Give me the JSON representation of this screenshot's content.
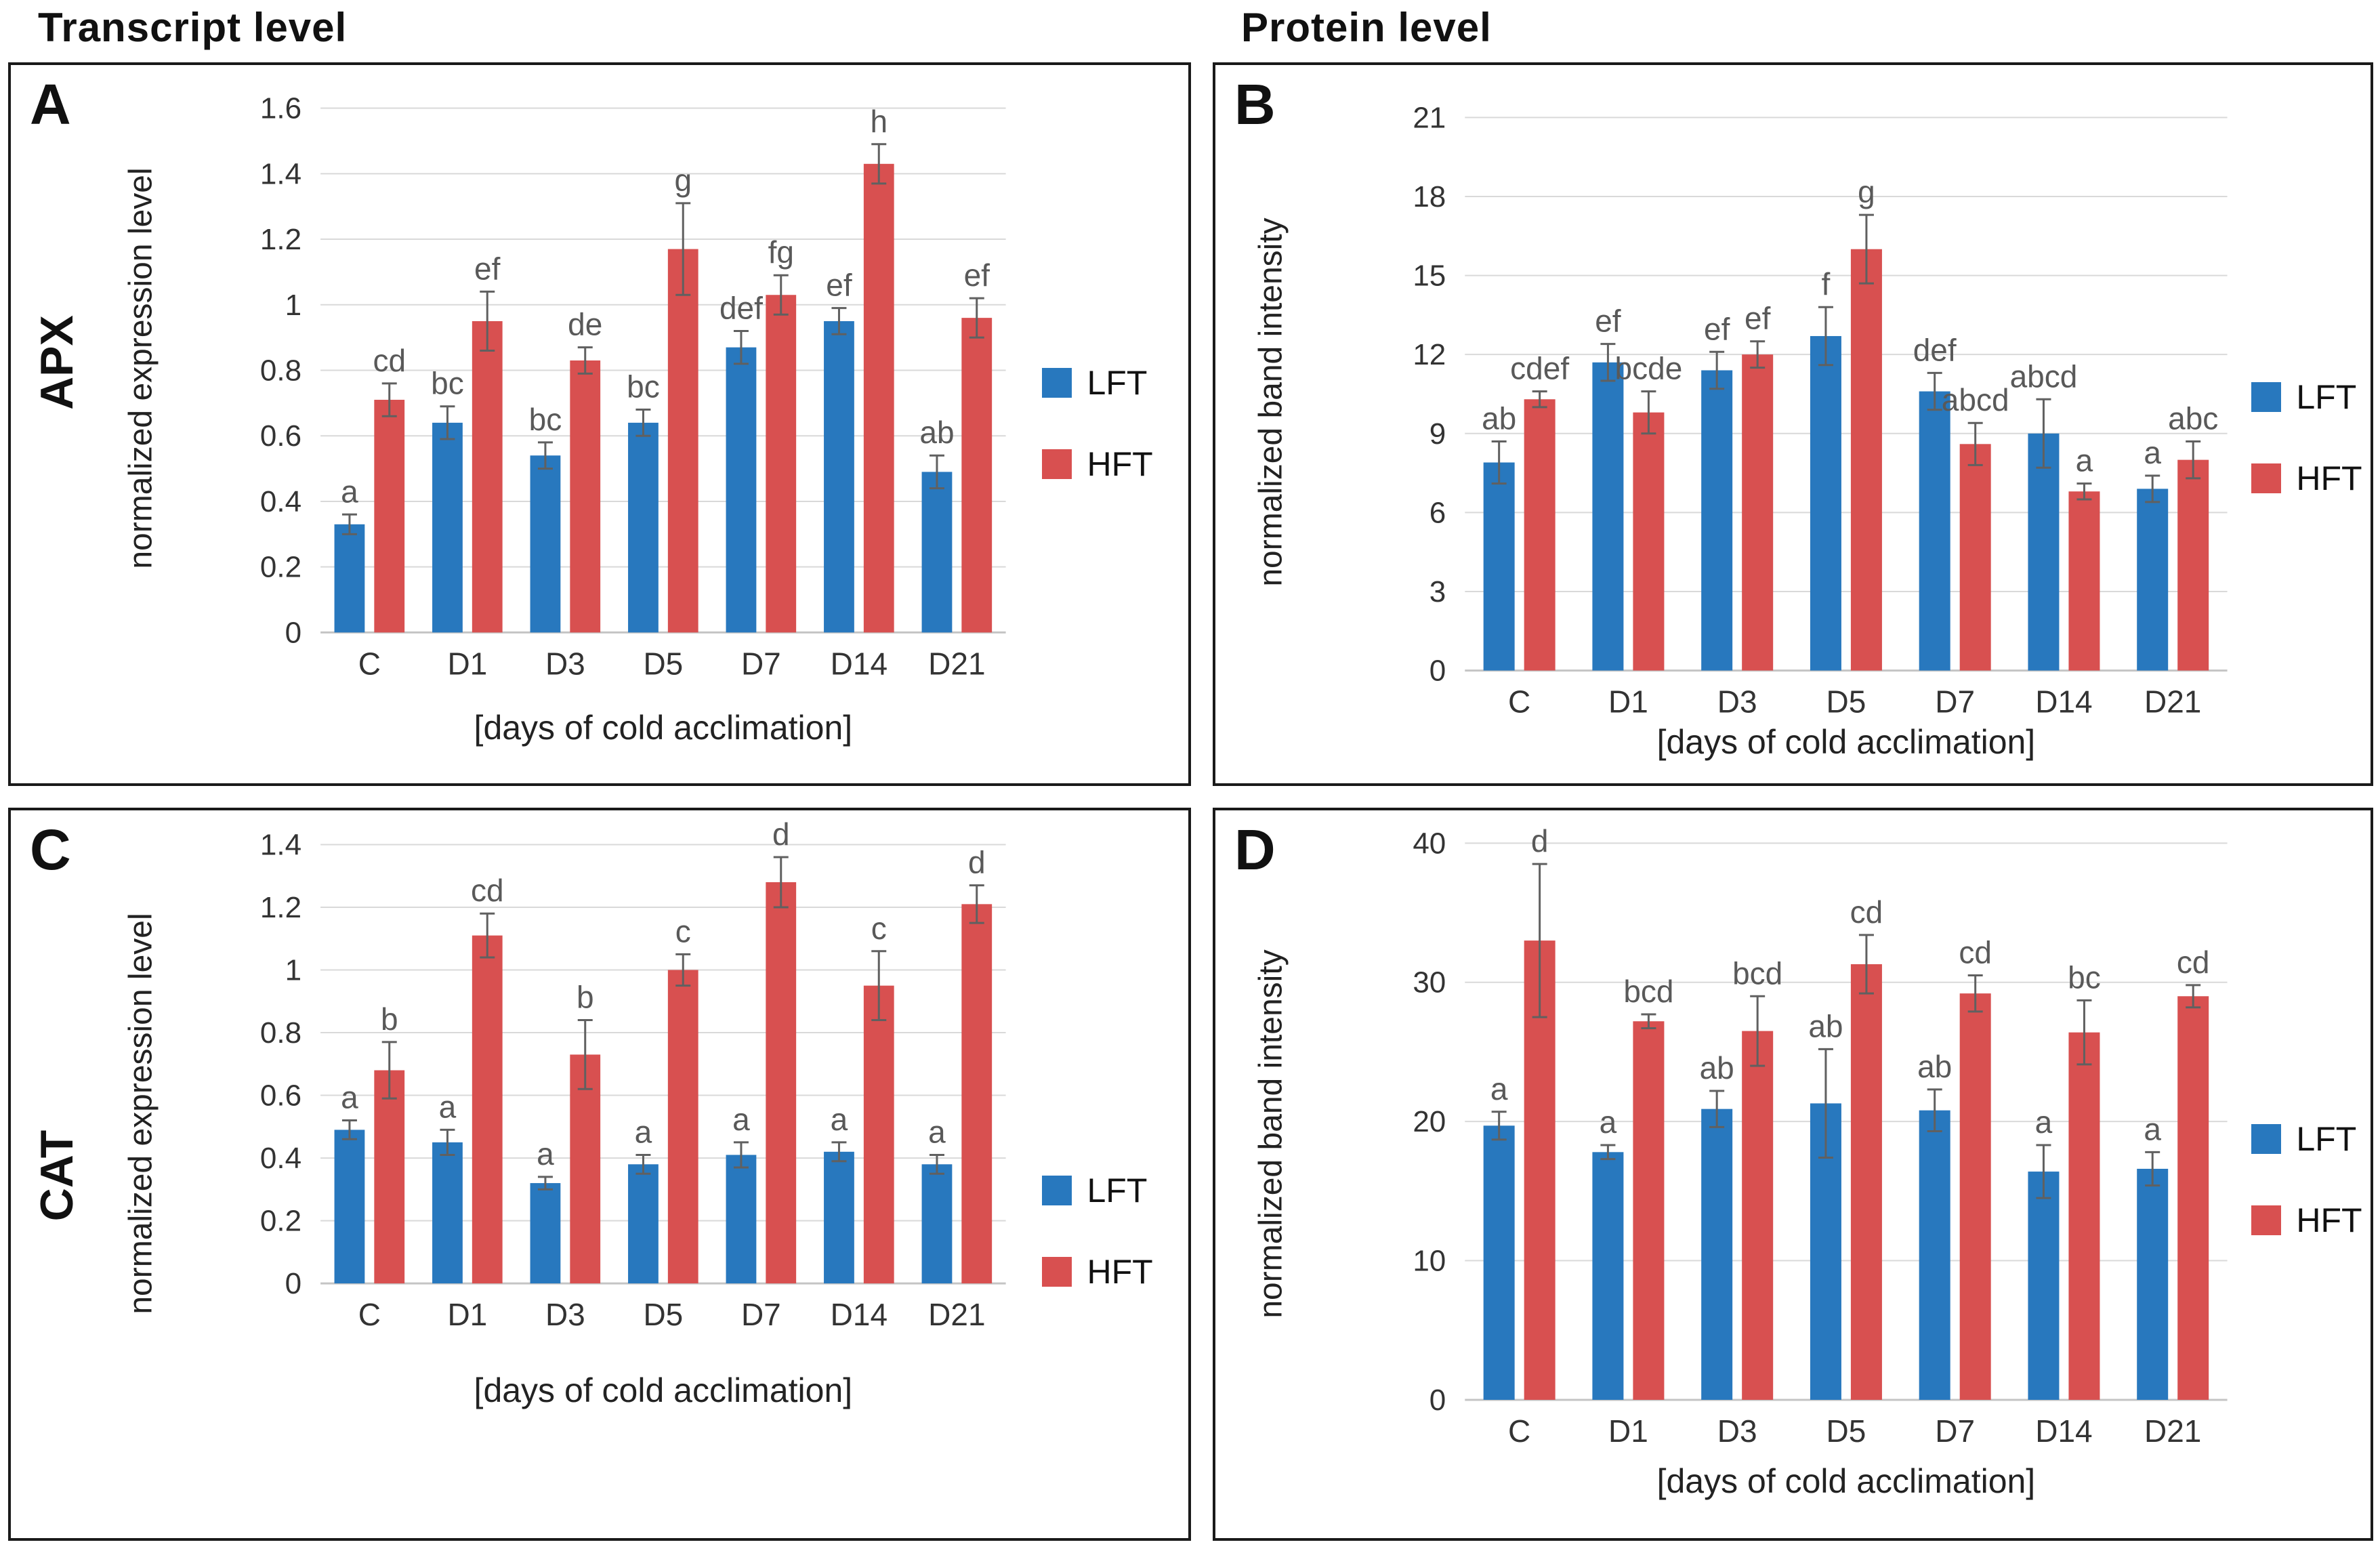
{
  "figure": {
    "column_titles": [
      "Transcript level",
      "Protein level"
    ],
    "legend": {
      "lft_label": "LFT",
      "hft_label": "HFT"
    },
    "colors": {
      "lft": "#2878BE",
      "hft": "#D85050",
      "error_bar": "#606060",
      "gridline": "#D9D9D9",
      "letter": "#595959",
      "axis_text": "#333333"
    }
  },
  "chart_data": [
    {
      "panel": "A",
      "type": "bar",
      "gene": "APX",
      "column_title": "Transcript level",
      "ylabel": "normalized expression level",
      "xlabel": "[days of cold acclimation]",
      "ylim": [
        0,
        1.6
      ],
      "yticks": [
        "0",
        "0.2",
        "0.4",
        "0.6",
        "0.8",
        "1",
        "1.2",
        "1.4",
        "1.6"
      ],
      "categories": [
        "C",
        "D1",
        "D3",
        "D5",
        "D7",
        "D14",
        "D21"
      ],
      "grid": true,
      "legend_position": "right",
      "series": [
        {
          "name": "LFT",
          "color": "#2878BE",
          "values": [
            0.33,
            0.64,
            0.54,
            0.64,
            0.87,
            0.95,
            0.49
          ],
          "errors": [
            0.03,
            0.05,
            0.04,
            0.04,
            0.05,
            0.04,
            0.05
          ],
          "letters": [
            "a",
            "bc",
            "bc",
            "bc",
            "def",
            "ef",
            "ab"
          ]
        },
        {
          "name": "HFT",
          "color": "#D85050",
          "values": [
            0.71,
            0.95,
            0.83,
            1.17,
            1.03,
            1.43,
            0.96
          ],
          "errors": [
            0.05,
            0.09,
            0.04,
            0.14,
            0.06,
            0.06,
            0.06
          ],
          "letters": [
            "cd",
            "ef",
            "de",
            "g",
            "fg",
            "h",
            "ef"
          ]
        }
      ]
    },
    {
      "panel": "B",
      "type": "bar",
      "gene": "",
      "column_title": "Protein level",
      "ylabel": "normalized band intensity",
      "xlabel": "[days of cold acclimation]",
      "ylim": [
        0,
        21
      ],
      "yticks": [
        "0",
        "3",
        "6",
        "9",
        "12",
        "15",
        "18",
        "21"
      ],
      "categories": [
        "C",
        "D1",
        "D3",
        "D5",
        "D7",
        "D14",
        "D21"
      ],
      "grid": true,
      "legend_position": "right",
      "series": [
        {
          "name": "LFT",
          "color": "#2878BE",
          "values": [
            7.9,
            11.7,
            11.4,
            12.7,
            10.6,
            9.0,
            6.9
          ],
          "errors": [
            0.8,
            0.7,
            0.7,
            1.1,
            0.7,
            1.3,
            0.5
          ],
          "letters": [
            "ab",
            "ef",
            "ef",
            "f",
            "def",
            "abcd",
            "a"
          ]
        },
        {
          "name": "HFT",
          "color": "#D85050",
          "values": [
            10.3,
            9.8,
            12.0,
            16.0,
            8.6,
            6.8,
            8.0
          ],
          "errors": [
            0.3,
            0.8,
            0.5,
            1.3,
            0.8,
            0.3,
            0.7
          ],
          "letters": [
            "cdef",
            "bcde",
            "ef",
            "g",
            "abcd",
            "a",
            "abc"
          ]
        }
      ]
    },
    {
      "panel": "C",
      "type": "bar",
      "gene": "CAT",
      "column_title": "Transcript level",
      "ylabel": "normalized expression level",
      "xlabel": "[days of cold acclimation]",
      "ylim": [
        0,
        1.4
      ],
      "yticks": [
        "0",
        "0.2",
        "0.4",
        "0.6",
        "0.8",
        "1",
        "1.2",
        "1.4"
      ],
      "categories": [
        "C",
        "D1",
        "D3",
        "D5",
        "D7",
        "D14",
        "D21"
      ],
      "grid": true,
      "legend_position": "right",
      "series": [
        {
          "name": "LFT",
          "color": "#2878BE",
          "values": [
            0.49,
            0.45,
            0.32,
            0.38,
            0.41,
            0.42,
            0.38
          ],
          "errors": [
            0.03,
            0.04,
            0.02,
            0.03,
            0.04,
            0.03,
            0.03
          ],
          "letters": [
            "a",
            "a",
            "a",
            "a",
            "a",
            "a",
            "a"
          ]
        },
        {
          "name": "HFT",
          "color": "#D85050",
          "values": [
            0.68,
            1.11,
            0.73,
            1.0,
            1.28,
            0.95,
            1.21
          ],
          "errors": [
            0.09,
            0.07,
            0.11,
            0.05,
            0.08,
            0.11,
            0.06
          ],
          "letters": [
            "b",
            "cd",
            "b",
            "c",
            "d",
            "c",
            "d"
          ]
        }
      ]
    },
    {
      "panel": "D",
      "type": "bar",
      "gene": "",
      "column_title": "Protein level",
      "ylabel": "normalized band intensity",
      "xlabel": "[days of cold acclimation]",
      "ylim": [
        0,
        40
      ],
      "yticks": [
        "0",
        "10",
        "20",
        "30",
        "40"
      ],
      "categories": [
        "C",
        "D1",
        "D3",
        "D5",
        "D7",
        "D14",
        "D21"
      ],
      "grid": true,
      "legend_position": "right",
      "series": [
        {
          "name": "LFT",
          "color": "#2878BE",
          "values": [
            19.7,
            17.8,
            20.9,
            21.3,
            20.8,
            16.4,
            16.6
          ],
          "errors": [
            1.0,
            0.5,
            1.3,
            3.9,
            1.5,
            1.9,
            1.2
          ],
          "letters": [
            "a",
            "a",
            "ab",
            "ab",
            "ab",
            "a",
            "a"
          ]
        },
        {
          "name": "HFT",
          "color": "#D85050",
          "values": [
            33.0,
            27.2,
            26.5,
            31.3,
            29.2,
            26.4,
            29.0
          ],
          "errors": [
            5.5,
            0.5,
            2.5,
            2.1,
            1.3,
            2.3,
            0.8
          ],
          "letters": [
            "d",
            "bcd",
            "bcd",
            "cd",
            "cd",
            "bc",
            "cd"
          ]
        }
      ]
    }
  ]
}
